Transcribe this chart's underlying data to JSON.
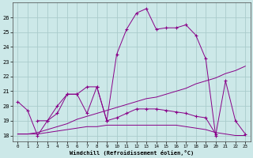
{
  "xlabel": "Windchill (Refroidissement éolien,°C)",
  "background_color": "#cce8e8",
  "line_color": "#880088",
  "grid_color": "#aacccc",
  "xlim": [
    -0.5,
    23.5
  ],
  "ylim": [
    17.6,
    27.0
  ],
  "yticks": [
    18,
    19,
    20,
    21,
    22,
    23,
    24,
    25,
    26
  ],
  "xticks": [
    0,
    1,
    2,
    3,
    4,
    5,
    6,
    7,
    8,
    9,
    10,
    11,
    12,
    13,
    14,
    15,
    16,
    17,
    18,
    19,
    20,
    21,
    22,
    23
  ],
  "line1_x": [
    0,
    1,
    2,
    3,
    4,
    5,
    6,
    7,
    8,
    9,
    10,
    11,
    12,
    13,
    14,
    15,
    16,
    17,
    18,
    19,
    20,
    21,
    22,
    23
  ],
  "line1_y": [
    20.3,
    19.7,
    18.0,
    19.0,
    20.0,
    20.8,
    20.8,
    21.3,
    21.3,
    19.0,
    23.5,
    25.2,
    26.3,
    26.6,
    25.2,
    25.3,
    25.3,
    25.5,
    24.8,
    23.2,
    18.0,
    21.7,
    19.0,
    18.1
  ],
  "line2_x": [
    0,
    1,
    2,
    3,
    4,
    5,
    6,
    7,
    8,
    9,
    10,
    11,
    12,
    13,
    14,
    15,
    16,
    17,
    18,
    19,
    20,
    21,
    22,
    23
  ],
  "line2_y": [
    null,
    null,
    19.0,
    19.0,
    19.5,
    20.8,
    20.8,
    19.5,
    21.3,
    19.0,
    19.2,
    19.5,
    19.8,
    19.8,
    19.8,
    19.7,
    19.6,
    19.5,
    19.3,
    19.2,
    18.1,
    null,
    null,
    null
  ],
  "line3_x": [
    0,
    1,
    2,
    3,
    4,
    5,
    6,
    7,
    8,
    9,
    10,
    11,
    12,
    13,
    14,
    15,
    16,
    17,
    18,
    19,
    20,
    21,
    22,
    23
  ],
  "line3_y": [
    18.1,
    18.1,
    18.2,
    18.4,
    18.6,
    18.8,
    19.1,
    19.3,
    19.5,
    19.7,
    19.9,
    20.1,
    20.3,
    20.5,
    20.6,
    20.8,
    21.0,
    21.2,
    21.5,
    21.7,
    21.9,
    22.2,
    22.4,
    22.7
  ],
  "line4_x": [
    0,
    1,
    2,
    3,
    4,
    5,
    6,
    7,
    8,
    9,
    10,
    11,
    12,
    13,
    14,
    15,
    16,
    17,
    18,
    19,
    20,
    21,
    22,
    23
  ],
  "line4_y": [
    18.1,
    18.1,
    18.1,
    18.2,
    18.3,
    18.4,
    18.5,
    18.6,
    18.6,
    18.7,
    18.7,
    18.7,
    18.7,
    18.7,
    18.7,
    18.7,
    18.7,
    18.6,
    18.5,
    18.4,
    18.2,
    18.1,
    18.0,
    18.0
  ]
}
